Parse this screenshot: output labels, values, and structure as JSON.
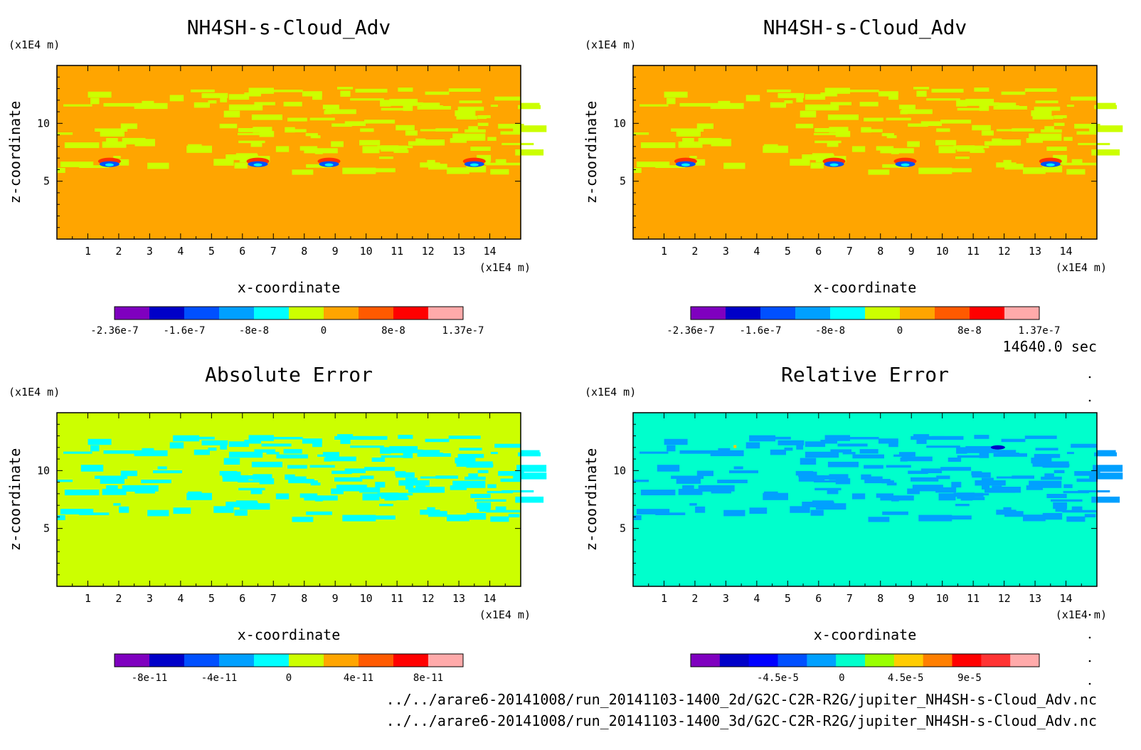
{
  "time_label": "14640.0 sec",
  "footer_lines": [
    "../../arare6-20141008/run_20141103-1400_2d/G2C-C2R-R2G/jupiter_NH4SH-s-Cloud_Adv.nc",
    "../../arare6-20141008/run_20141103-1400_3d/G2C-C2R-R2G/jupiter_NH4SH-s-Cloud_Adv.nc"
  ],
  "chart_data": [
    {
      "type": "heatmap",
      "title": "NH4SH-s-Cloud_Adv",
      "xlabel": "x-coordinate",
      "ylabel": "z-coordinate",
      "x_unit": "(x1E4 m)",
      "y_unit": "(x1E4 m)",
      "x_ticks": [
        "1",
        "2",
        "3",
        "4",
        "5",
        "6",
        "7",
        "8",
        "9",
        "10",
        "11",
        "12",
        "13",
        "14"
      ],
      "y_ticks": [
        "5",
        "10"
      ],
      "xlim": [
        0,
        15
      ],
      "ylim": [
        0,
        15
      ],
      "background_color": "#ffa500",
      "colorbar": {
        "colors": [
          "#7f00bf",
          "#0000c8",
          "#0050ff",
          "#00a0ff",
          "#00ffff",
          "#ccff00",
          "#ffa500",
          "#ff5a00",
          "#ff0000",
          "#ffaaaa"
        ],
        "labels": [
          "-2.36e-7",
          "-1.6e-7",
          "-8e-8",
          "0",
          "8e-8",
          "1.37e-7"
        ],
        "label_positions": [
          0.0,
          0.2,
          0.4,
          0.6,
          0.8,
          1.0
        ]
      }
    },
    {
      "type": "heatmap",
      "title": "NH4SH-s-Cloud_Adv",
      "xlabel": "x-coordinate",
      "ylabel": "z-coordinate",
      "x_unit": "(x1E4 m)",
      "y_unit": "(x1E4 m)",
      "x_ticks": [
        "1",
        "2",
        "3",
        "4",
        "5",
        "6",
        "7",
        "8",
        "9",
        "10",
        "11",
        "12",
        "13",
        "14"
      ],
      "y_ticks": [
        "5",
        "10"
      ],
      "xlim": [
        0,
        15
      ],
      "ylim": [
        0,
        15
      ],
      "background_color": "#ffa500",
      "colorbar": {
        "colors": [
          "#7f00bf",
          "#0000c8",
          "#0050ff",
          "#00a0ff",
          "#00ffff",
          "#ccff00",
          "#ffa500",
          "#ff5a00",
          "#ff0000",
          "#ffaaaa"
        ],
        "labels": [
          "-2.36e-7",
          "-1.6e-7",
          "-8e-8",
          "0",
          "8e-8",
          "1.37e-7"
        ],
        "label_positions": [
          0.0,
          0.2,
          0.4,
          0.6,
          0.8,
          1.0
        ]
      }
    },
    {
      "type": "heatmap",
      "title": "Absolute Error",
      "xlabel": "x-coordinate",
      "ylabel": "z-coordinate",
      "x_unit": "(x1E4 m)",
      "y_unit": "(x1E4 m)",
      "x_ticks": [
        "1",
        "2",
        "3",
        "4",
        "5",
        "6",
        "7",
        "8",
        "9",
        "10",
        "11",
        "12",
        "13",
        "14"
      ],
      "y_ticks": [
        "5",
        "10"
      ],
      "xlim": [
        0,
        15
      ],
      "ylim": [
        0,
        15
      ],
      "background_color": "#ccff00",
      "colorbar": {
        "colors": [
          "#7f00bf",
          "#0000c8",
          "#0050ff",
          "#00a0ff",
          "#00ffff",
          "#ccff00",
          "#ffa500",
          "#ff5a00",
          "#ff0000",
          "#ffaaaa"
        ],
        "labels": [
          "-8e-11",
          "-4e-11",
          "0",
          "4e-11",
          "8e-11"
        ],
        "label_positions": [
          0.1,
          0.3,
          0.5,
          0.7,
          0.9
        ]
      }
    },
    {
      "type": "heatmap",
      "title": "Relative Error",
      "xlabel": "x-coordinate",
      "ylabel": "z-coordinate",
      "x_unit": "(x1E4 m)",
      "y_unit": "(x1E4 m)",
      "x_ticks": [
        "1",
        "2",
        "3",
        "4",
        "5",
        "6",
        "7",
        "8",
        "9",
        "10",
        "11",
        "12",
        "13",
        "14"
      ],
      "y_ticks": [
        "5",
        "10"
      ],
      "xlim": [
        0,
        15
      ],
      "ylim": [
        0,
        15
      ],
      "background_color": "#00ffcc",
      "colorbar": {
        "colors": [
          "#7f00bf",
          "#0000c8",
          "#0000ff",
          "#0050ff",
          "#00a0ff",
          "#00ffcc",
          "#99ff00",
          "#ffcc00",
          "#ff7f00",
          "#ff0000",
          "#ff3333",
          "#ffaaaa"
        ],
        "labels": [
          "-4.5e-5",
          "0",
          "4.5e-5",
          "9e-5"
        ],
        "label_positions": [
          0.25,
          0.4333,
          0.6167,
          0.8
        ]
      }
    }
  ]
}
